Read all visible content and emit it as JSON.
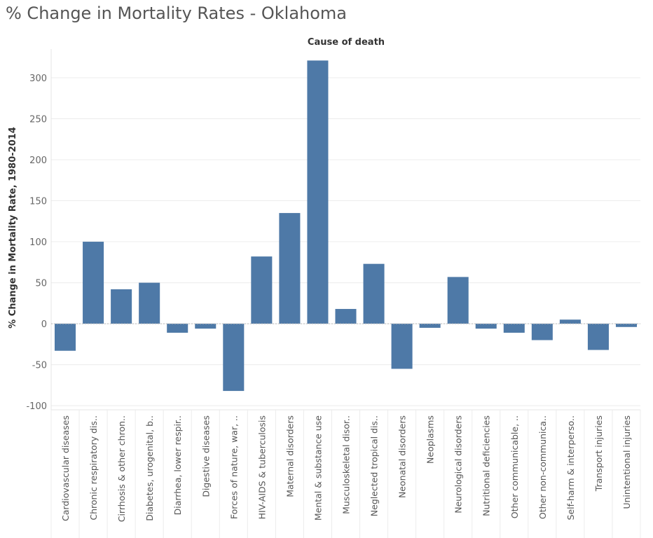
{
  "chart_data": {
    "type": "bar",
    "title": "% Change in Mortality Rates - Oklahoma",
    "xlabel": "Cause of death",
    "ylabel": "% Change in Mortality Rate, 1980-2014",
    "ylim": [
      -105,
      335
    ],
    "yticks": [
      -100,
      -50,
      0,
      50,
      100,
      150,
      200,
      250,
      300
    ],
    "grid": true,
    "bar_color": "#4e79a7",
    "categories": [
      "Cardiovascular diseases",
      "Chronic respiratory dis..",
      "Cirrhosis & other chron..",
      "Diabetes, urogenital, b..",
      "Diarrhea, lower respir..",
      "Digestive diseases",
      "Forces of nature, war, ..",
      "HIV-AIDS & tuberculosis",
      "Maternal disorders",
      "Mental & substance use",
      "Musculoskeletal disor..",
      "Neglected tropical dis..",
      "Neonatal disorders",
      "Neoplasms",
      "Neurological disorders",
      "Nutritional deficiencies",
      "Other communicable, ..",
      "Other non-communica..",
      "Self-harm & interperso..",
      "Transport injuries",
      "Unintentional injuries"
    ],
    "values": [
      -33,
      100,
      42,
      50,
      -11,
      -6,
      -82,
      82,
      135,
      321,
      18,
      73,
      -55,
      -5,
      57,
      -6,
      -11,
      -20,
      5,
      -32,
      -4
    ]
  }
}
